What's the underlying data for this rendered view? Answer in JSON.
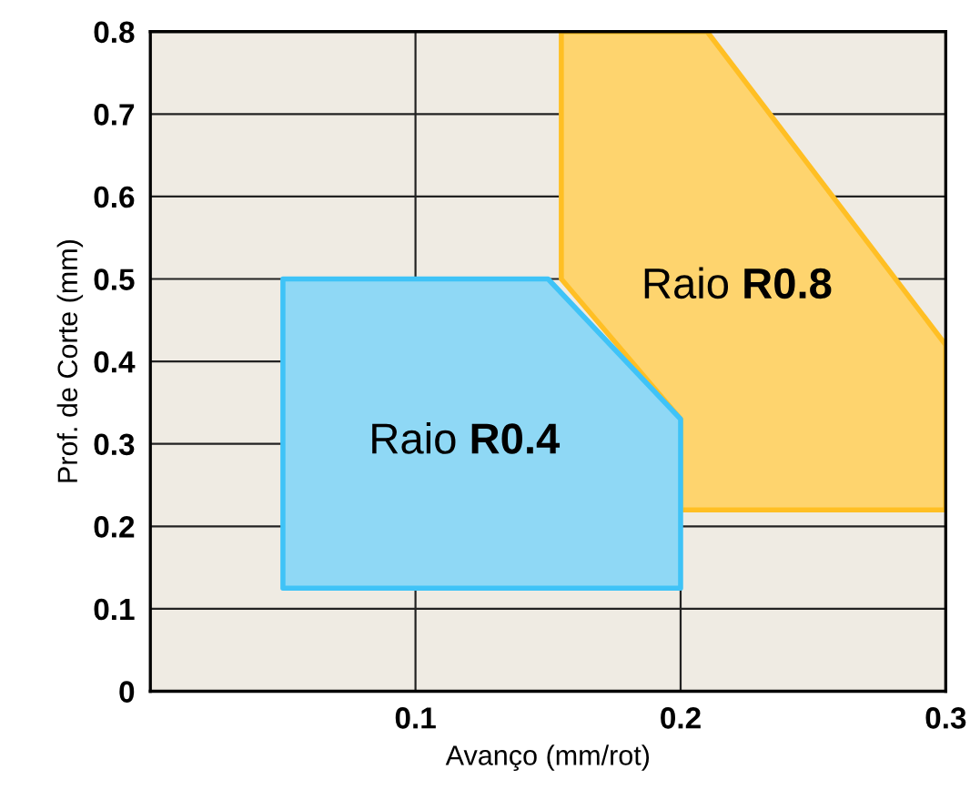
{
  "chart_data": {
    "type": "area",
    "xlabel": "Avanço (mm/rot)",
    "ylabel": "Prof. de Corte (mm)",
    "series": [
      {
        "color": "#fed46e",
        "x": [
          0.155,
          0.2,
          0.2,
          0.21,
          0.3
        ],
        "values": [
          null,
          null,
          null,
          null,
          null
        ],
        "lower": [
          0.5,
          0.33,
          0.22,
          0.22,
          0.22
        ],
        "upper": [
          0.8,
          0.8,
          0.8,
          0.8,
          0.42
        ]
      },
      {
        "color": "#8fd8f5",
        "x": [
          0.05,
          0.15,
          0.2
        ],
        "values": [
          null,
          null,
          null
        ],
        "lower": [
          0.125,
          0.125,
          0.125
        ],
        "upper": [
          0.5,
          0.5,
          0.33
        ]
      }
    ],
    "annotations": [
      "Raio R0.8",
      "Raio R0.4"
    ],
    "xlim": [
      0,
      0.3
    ],
    "xticks": [
      0.1,
      0.2,
      0.3
    ],
    "ylim": [
      0,
      0.8
    ],
    "yticks": [
      0,
      0.1,
      0.2,
      0.3,
      0.4,
      0.5,
      0.6,
      0.7,
      0.8
    ],
    "grid": true
  }
}
